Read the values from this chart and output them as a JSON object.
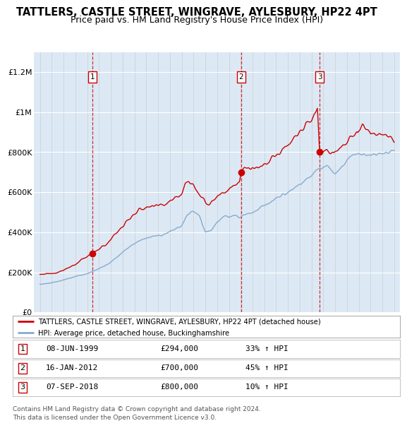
{
  "title": "TATTLERS, CASTLE STREET, WINGRAVE, AYLESBURY, HP22 4PT",
  "subtitle": "Price paid vs. HM Land Registry's House Price Index (HPI)",
  "title_fontsize": 10.5,
  "subtitle_fontsize": 9,
  "bg_color": "#dce9f5",
  "red_color": "#cc0000",
  "blue_color": "#88aacc",
  "sale_dates": [
    1999.44,
    2012.04,
    2018.68
  ],
  "sale_prices": [
    294000,
    700000,
    800000
  ],
  "sale_labels": [
    "1",
    "2",
    "3"
  ],
  "legend_line1": "TATTLERS, CASTLE STREET, WINGRAVE, AYLESBURY, HP22 4PT (detached house)",
  "legend_line2": "HPI: Average price, detached house, Buckinghamshire",
  "table_data": [
    [
      "1",
      "08-JUN-1999",
      "£294,000",
      "33% ↑ HPI"
    ],
    [
      "2",
      "16-JAN-2012",
      "£700,000",
      "45% ↑ HPI"
    ],
    [
      "3",
      "07-SEP-2018",
      "£800,000",
      "10% ↑ HPI"
    ]
  ],
  "footer": "Contains HM Land Registry data © Crown copyright and database right 2024.\nThis data is licensed under the Open Government Licence v3.0.",
  "ylim": [
    0,
    1300000
  ],
  "yticks": [
    0,
    200000,
    400000,
    600000,
    800000,
    1000000,
    1200000
  ],
  "ytick_labels": [
    "£0",
    "£200K",
    "£400K",
    "£600K",
    "£800K",
    "£1M",
    "£1.2M"
  ],
  "xmin": 1994.5,
  "xmax": 2025.5,
  "hpi_keypoints": [
    [
      1995.0,
      140000
    ],
    [
      1996.0,
      148000
    ],
    [
      1997.0,
      162000
    ],
    [
      1998.0,
      178000
    ],
    [
      1999.0,
      193000
    ],
    [
      2000.0,
      218000
    ],
    [
      2001.0,
      250000
    ],
    [
      2002.0,
      300000
    ],
    [
      2003.0,
      345000
    ],
    [
      2004.0,
      370000
    ],
    [
      2005.0,
      382000
    ],
    [
      2006.0,
      400000
    ],
    [
      2007.0,
      435000
    ],
    [
      2007.5,
      490000
    ],
    [
      2008.0,
      505000
    ],
    [
      2008.5,
      480000
    ],
    [
      2009.0,
      400000
    ],
    [
      2009.5,
      410000
    ],
    [
      2010.0,
      450000
    ],
    [
      2010.5,
      475000
    ],
    [
      2011.0,
      478000
    ],
    [
      2011.5,
      482000
    ],
    [
      2012.0,
      482000
    ],
    [
      2012.5,
      490000
    ],
    [
      2013.0,
      500000
    ],
    [
      2013.5,
      515000
    ],
    [
      2014.0,
      535000
    ],
    [
      2014.5,
      550000
    ],
    [
      2015.0,
      570000
    ],
    [
      2015.5,
      585000
    ],
    [
      2016.0,
      600000
    ],
    [
      2016.5,
      615000
    ],
    [
      2017.0,
      635000
    ],
    [
      2017.5,
      660000
    ],
    [
      2018.0,
      685000
    ],
    [
      2018.5,
      710000
    ],
    [
      2019.0,
      730000
    ],
    [
      2019.5,
      720000
    ],
    [
      2020.0,
      700000
    ],
    [
      2020.5,
      720000
    ],
    [
      2021.0,
      755000
    ],
    [
      2021.5,
      780000
    ],
    [
      2022.0,
      800000
    ],
    [
      2022.5,
      790000
    ],
    [
      2023.0,
      780000
    ],
    [
      2023.5,
      785000
    ],
    [
      2024.0,
      790000
    ],
    [
      2024.5,
      800000
    ],
    [
      2025.0,
      800000
    ]
  ],
  "prop_keypoints": [
    [
      1995.0,
      192000
    ],
    [
      1995.5,
      193000
    ],
    [
      1996.0,
      195000
    ],
    [
      1996.5,
      200000
    ],
    [
      1997.0,
      210000
    ],
    [
      1997.5,
      225000
    ],
    [
      1998.0,
      240000
    ],
    [
      1998.5,
      265000
    ],
    [
      1999.0,
      280000
    ],
    [
      1999.44,
      294000
    ],
    [
      2000.0,
      315000
    ],
    [
      2000.5,
      335000
    ],
    [
      2001.0,
      365000
    ],
    [
      2001.5,
      400000
    ],
    [
      2002.0,
      430000
    ],
    [
      2002.5,
      460000
    ],
    [
      2003.0,
      490000
    ],
    [
      2003.5,
      510000
    ],
    [
      2004.0,
      520000
    ],
    [
      2004.5,
      530000
    ],
    [
      2005.0,
      535000
    ],
    [
      2005.5,
      540000
    ],
    [
      2006.0,
      555000
    ],
    [
      2006.5,
      570000
    ],
    [
      2007.0,
      600000
    ],
    [
      2007.3,
      645000
    ],
    [
      2007.6,
      655000
    ],
    [
      2007.9,
      638000
    ],
    [
      2008.2,
      620000
    ],
    [
      2008.5,
      600000
    ],
    [
      2008.8,
      570000
    ],
    [
      2009.0,
      550000
    ],
    [
      2009.3,
      540000
    ],
    [
      2009.6,
      555000
    ],
    [
      2009.9,
      575000
    ],
    [
      2010.2,
      590000
    ],
    [
      2010.5,
      600000
    ],
    [
      2010.8,
      610000
    ],
    [
      2011.0,
      615000
    ],
    [
      2011.3,
      625000
    ],
    [
      2011.6,
      635000
    ],
    [
      2011.9,
      648000
    ],
    [
      2012.04,
      700000
    ],
    [
      2012.3,
      710000
    ],
    [
      2012.6,
      715000
    ],
    [
      2013.0,
      718000
    ],
    [
      2013.5,
      720000
    ],
    [
      2014.0,
      730000
    ],
    [
      2014.5,
      750000
    ],
    [
      2015.0,
      780000
    ],
    [
      2015.5,
      810000
    ],
    [
      2016.0,
      840000
    ],
    [
      2016.5,
      870000
    ],
    [
      2017.0,
      900000
    ],
    [
      2017.5,
      940000
    ],
    [
      2018.0,
      970000
    ],
    [
      2018.3,
      1000000
    ],
    [
      2018.5,
      1020000
    ],
    [
      2018.68,
      800000
    ],
    [
      2019.0,
      810000
    ],
    [
      2019.3,
      820000
    ],
    [
      2019.6,
      800000
    ],
    [
      2019.9,
      790000
    ],
    [
      2020.2,
      810000
    ],
    [
      2020.5,
      830000
    ],
    [
      2020.8,
      850000
    ],
    [
      2021.0,
      860000
    ],
    [
      2021.3,
      875000
    ],
    [
      2021.6,
      890000
    ],
    [
      2021.9,
      900000
    ],
    [
      2022.0,
      920000
    ],
    [
      2022.3,
      935000
    ],
    [
      2022.6,
      920000
    ],
    [
      2022.9,
      910000
    ],
    [
      2023.0,
      900000
    ],
    [
      2023.3,
      895000
    ],
    [
      2023.6,
      890000
    ],
    [
      2024.0,
      885000
    ],
    [
      2024.3,
      880000
    ],
    [
      2024.6,
      875000
    ],
    [
      2025.0,
      870000
    ]
  ]
}
